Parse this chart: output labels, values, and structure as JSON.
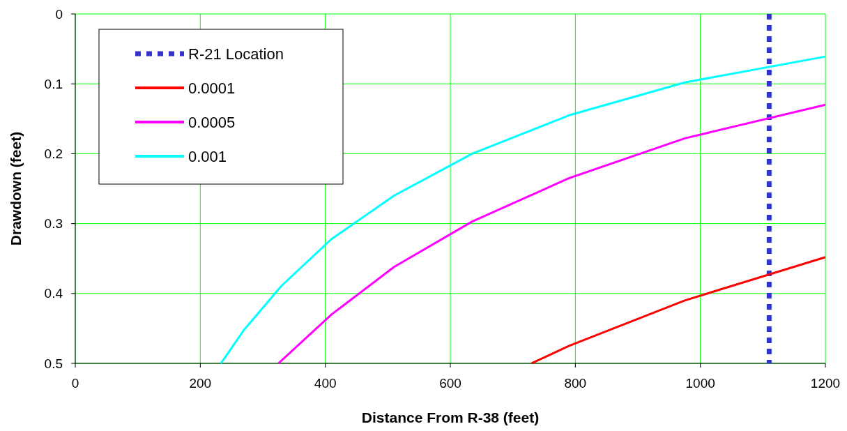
{
  "chart_data": {
    "type": "line",
    "xlabel": "Distance From R-38 (feet)",
    "ylabel": "Drawdown (feet)",
    "xlim": [
      0,
      1200
    ],
    "xticks": [
      0,
      200,
      400,
      600,
      800,
      1000,
      1200
    ],
    "ylim": [
      0.5,
      0
    ],
    "yticks": [
      0,
      0.1,
      0.2,
      0.3,
      0.4,
      0.5
    ],
    "grid": true,
    "legend": "top left",
    "line_style": "solid",
    "marker": "none",
    "series": [
      {
        "name": "R-21 Location",
        "color": "#3333cc",
        "line_style": "dotted",
        "x": [
          1110,
          1110
        ],
        "values": [
          0,
          0.5
        ]
      },
      {
        "name": "0.0001",
        "color": "#ff0000",
        "x": [
          730,
          790,
          975,
          1200
        ],
        "values": [
          0.5,
          0.475,
          0.41,
          0.348
        ]
      },
      {
        "name": "0.0005",
        "color": "#ff00ff",
        "x": [
          325,
          410,
          510,
          635,
          790,
          975,
          1200
        ],
        "values": [
          0.5,
          0.43,
          0.362,
          0.297,
          0.235,
          0.178,
          0.13
        ]
      },
      {
        "name": "0.001",
        "color": "#00ffff",
        "x": [
          233,
          270,
          330,
          410,
          510,
          635,
          790,
          975,
          1200
        ],
        "values": [
          0.5,
          0.452,
          0.389,
          0.322,
          0.26,
          0.2,
          0.145,
          0.098,
          0.061
        ]
      }
    ]
  }
}
